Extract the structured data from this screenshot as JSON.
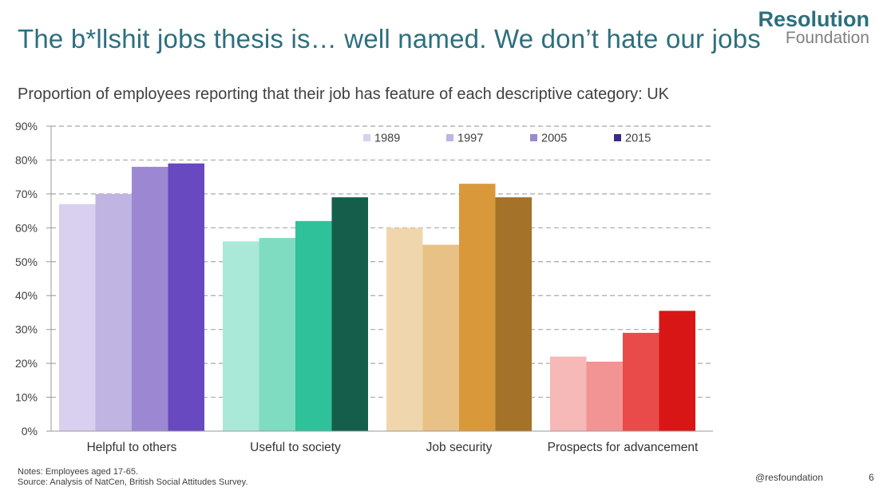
{
  "header": {
    "title": "The b*llshit jobs thesis is… well named. We don’t hate our jobs",
    "logo_top": "Resolution",
    "logo_bottom": "Foundation"
  },
  "subtitle": "Proportion of employees reporting that their job has feature of each descriptive category: UK",
  "footer": {
    "notes_line1": "Notes: Employees aged 17-65.",
    "notes_line2": "Source: Analysis of NatCen, British Social Attitudes Survey.",
    "handle": "@resfoundation",
    "page_number": "6"
  },
  "chart_data": {
    "type": "bar",
    "title": "Proportion of employees reporting that their job has feature of each descriptive category: UK",
    "xlabel": "",
    "ylabel": "",
    "ylim": [
      0,
      90
    ],
    "y_ticks": [
      0,
      10,
      20,
      30,
      40,
      50,
      60,
      70,
      80,
      90
    ],
    "y_tick_format": "%",
    "grid": true,
    "legend_position": "top-right",
    "categories": [
      "Helpful to others",
      "Useful to society",
      "Job security",
      "Prospects for advancement"
    ],
    "series": [
      {
        "name": "1989",
        "values": [
          67,
          56,
          60,
          22
        ]
      },
      {
        "name": "1997",
        "values": [
          70,
          57,
          55,
          20.5
        ]
      },
      {
        "name": "2005",
        "values": [
          78,
          62,
          73,
          29
        ]
      },
      {
        "name": "2015",
        "values": [
          79,
          69,
          69,
          35.5
        ]
      }
    ],
    "legend_colors": [
      "#d8d0ee",
      "#c0b4e2",
      "#9c88d2",
      "#3c2a86"
    ],
    "category_colors": [
      [
        "#d8d0ee",
        "#c0b4e2",
        "#9c88d2",
        "#6849bf"
      ],
      [
        "#aae9d7",
        "#7fdcc1",
        "#2fc19a",
        "#155e4c"
      ],
      [
        "#f0d6ac",
        "#e8c186",
        "#d9993b",
        "#a47228"
      ],
      [
        "#f7b8b8",
        "#f29494",
        "#e94a4a",
        "#d91616"
      ]
    ],
    "axis_color": "#999999",
    "grid_color": "#a8a8a8"
  }
}
